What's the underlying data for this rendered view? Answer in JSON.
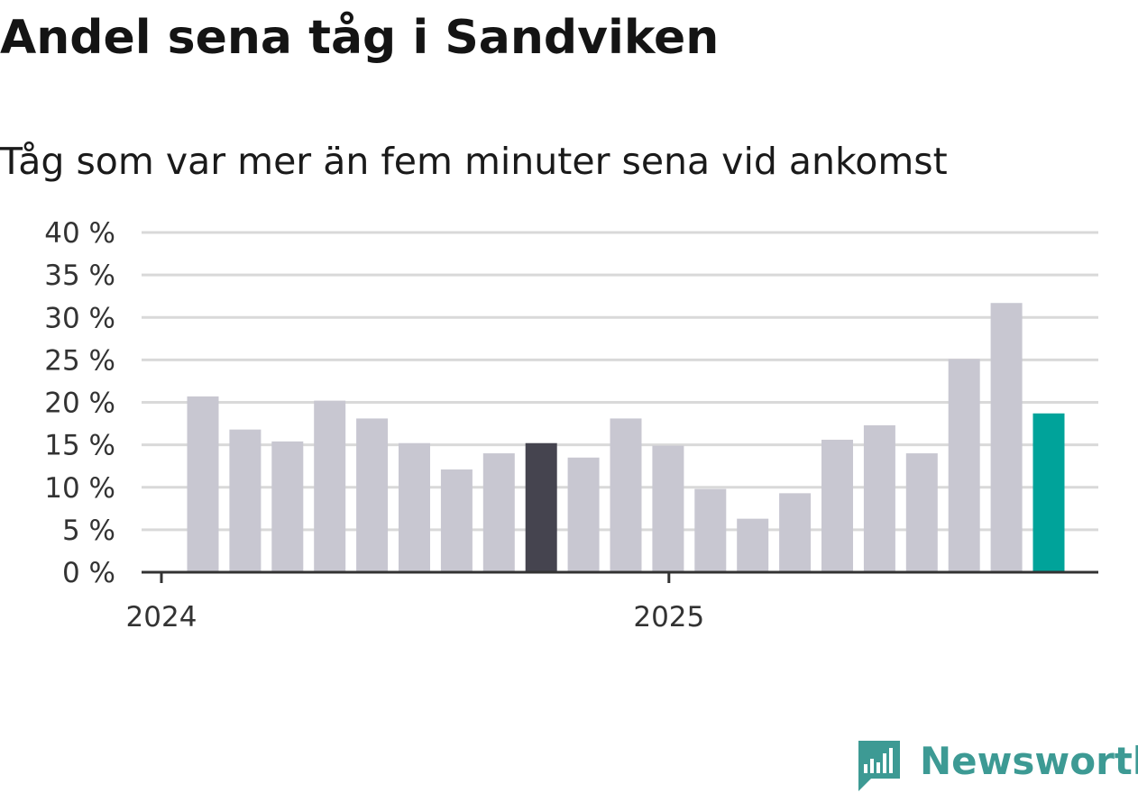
{
  "header": {
    "title": "Andel sena tåg i Sandviken",
    "subtitle": "Tåg som var mer än fem minuter sena vid ankomst"
  },
  "brand": {
    "name": "Newsworthy",
    "color": "#3d9a94",
    "icon": "newsworthy-logo-icon"
  },
  "colors": {
    "bar_default": "#c8c7d1",
    "bar_highlight_dark": "#45444f",
    "bar_highlight_accent": "#00a39a",
    "grid": "#d9d9d9",
    "axis": "#333333"
  },
  "chart_data": {
    "type": "bar",
    "title": "Andel sena tåg i Sandviken",
    "subtitle": "Tåg som var mer än fem minuter sena vid ankomst",
    "x": [
      "2024-01",
      "2024-02",
      "2024-03",
      "2024-04",
      "2024-05",
      "2024-06",
      "2024-07",
      "2024-08",
      "2024-09",
      "2024-10",
      "2024-11",
      "2024-12",
      "2025-01",
      "2025-02",
      "2025-03",
      "2025-04",
      "2025-05",
      "2025-06",
      "2025-07",
      "2025-08",
      "2025-09"
    ],
    "values": [
      20.7,
      16.8,
      15.4,
      20.2,
      18.1,
      15.2,
      12.1,
      14.0,
      15.2,
      13.5,
      18.1,
      14.9,
      9.8,
      6.3,
      9.3,
      15.6,
      17.3,
      14.0,
      25.1,
      31.7,
      18.7
    ],
    "highlight": {
      "2024-09": "dark",
      "2025-09": "accent"
    },
    "x_ticks": [
      {
        "x": "2024-01",
        "label": "2024"
      },
      {
        "x": "2025-01",
        "label": "2025"
      }
    ],
    "y_ticks": [
      {
        "value": 0,
        "label": "0 %"
      },
      {
        "value": 5,
        "label": "5 %"
      },
      {
        "value": 10,
        "label": "10 %"
      },
      {
        "value": 15,
        "label": "15 %"
      },
      {
        "value": 20,
        "label": "20 %"
      },
      {
        "value": 25,
        "label": "25 %"
      },
      {
        "value": 30,
        "label": "30 %"
      },
      {
        "value": 35,
        "label": "35 %"
      },
      {
        "value": 40,
        "label": "40 %"
      }
    ],
    "ylim": [
      0,
      40
    ],
    "grid": true,
    "legend": "none"
  }
}
